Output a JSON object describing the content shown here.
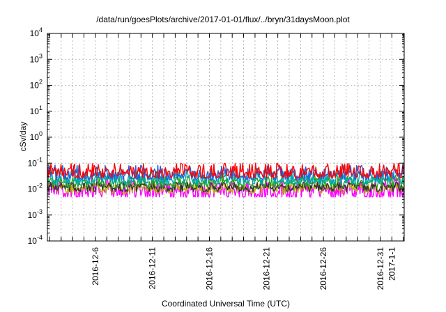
{
  "chart_data": {
    "type": "line",
    "title": "/data/run/goesPlots/archive/2017-01-01/flux/../bryn/31daysMoon.plot",
    "xlabel": "Coordinated Universal Time (UTC)",
    "ylabel": "cSv/day",
    "y_scale": "log",
    "ylim": [
      0.0001,
      10000
    ],
    "y_ticks": [
      {
        "base": "10",
        "exp": "-4",
        "value": 0.0001
      },
      {
        "base": "10",
        "exp": "-3",
        "value": 0.001
      },
      {
        "base": "10",
        "exp": "-2",
        "value": 0.01
      },
      {
        "base": "10",
        "exp": "-1",
        "value": 0.1
      },
      {
        "base": "10",
        "exp": "0",
        "value": 1
      },
      {
        "base": "10",
        "exp": "1",
        "value": 10
      },
      {
        "base": "10",
        "exp": "2",
        "value": 100
      },
      {
        "base": "10",
        "exp": "3",
        "value": 1000
      },
      {
        "base": "10",
        "exp": "4",
        "value": 10000
      }
    ],
    "xlim": [
      "2016-12-01T19:00",
      "2017-01-02T02:00"
    ],
    "x_ticks": [
      "2016-12-6",
      "2016-12-11",
      "2016-12-16",
      "2016-12-21",
      "2016-12-26",
      "2016-12-31",
      "2017-1-1"
    ],
    "grid": true,
    "series": [
      {
        "color": "#ff0000",
        "level": 0.042,
        "low": 0.028,
        "high": 0.1
      },
      {
        "color": "#1f5fdc",
        "level": 0.036,
        "low": 0.024,
        "high": 0.085
      },
      {
        "color": "#00a8a8",
        "level": 0.025,
        "low": 0.016,
        "high": 0.05
      },
      {
        "color": "#22a022",
        "level": 0.018,
        "low": 0.012,
        "high": 0.03
      },
      {
        "color": "#333333",
        "level": 0.012,
        "low": 0.008,
        "high": 0.018
      },
      {
        "color": "#b5b500",
        "level": 0.011,
        "low": 0.007,
        "high": 0.016
      },
      {
        "color": "#ff00ff",
        "level": 0.009,
        "low": 0.005,
        "high": 0.028
      }
    ]
  }
}
